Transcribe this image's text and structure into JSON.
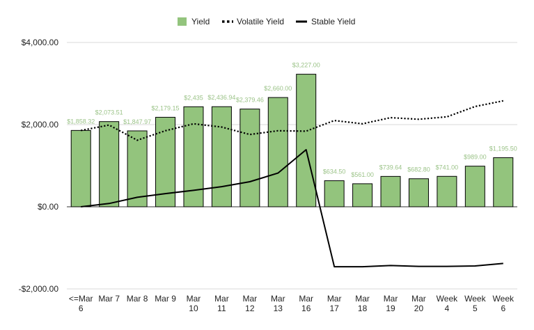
{
  "chart_data": {
    "type": "bar",
    "title": "",
    "xlabel": "",
    "ylabel": "",
    "ylim": [
      -2000,
      4000
    ],
    "yticks": [
      -2000,
      0,
      2000,
      4000
    ],
    "ytick_labels": [
      "-$2,000.00",
      "$0.00",
      "$2,000.00",
      "$4,000.00"
    ],
    "grid": true,
    "legend_position": "top",
    "categories": [
      [
        "<=Mar",
        "6"
      ],
      [
        "Mar 7"
      ],
      [
        "Mar 8"
      ],
      [
        "Mar 9"
      ],
      [
        "Mar",
        "10"
      ],
      [
        "Mar",
        "11"
      ],
      [
        "Mar",
        "12"
      ],
      [
        "Mar",
        "13"
      ],
      [
        "Mar",
        "16"
      ],
      [
        "Mar",
        "17"
      ],
      [
        "Mar",
        "18"
      ],
      [
        "Mar",
        "19"
      ],
      [
        "Mar",
        "20"
      ],
      [
        "Week",
        "4"
      ],
      [
        "Week",
        "5"
      ],
      [
        "Week",
        "6"
      ]
    ],
    "series": [
      {
        "name": "Yield",
        "kind": "bar",
        "color": "#93c47d",
        "values": [
          1858.32,
          2073.51,
          1847.97,
          2179.15,
          2435,
          2436.94,
          2379.46,
          2660,
          3227,
          634.5,
          561,
          739.64,
          682.8,
          741,
          989,
          1195.5
        ],
        "labels": [
          "$1,858.32",
          "$2,073.51",
          "$1,847.97",
          "$2,179.15",
          "$2,435",
          "$2,436.94",
          "$2,379.46",
          "$2,660.00",
          "$3,227.00",
          "$634.50",
          "$561.00",
          "$739.64",
          "$682.80",
          "$741.00",
          "$989.00",
          "$1,195.50"
        ]
      },
      {
        "name": "Volatile Yield",
        "kind": "line",
        "style": "dotted",
        "color": "#000000",
        "values": [
          1858,
          1990,
          1620,
          1850,
          2020,
          1940,
          1760,
          1850,
          1840,
          2100,
          2020,
          2170,
          2130,
          2190,
          2440,
          2580
        ]
      },
      {
        "name": "Stable Yield",
        "kind": "line",
        "style": "solid",
        "color": "#000000",
        "values": [
          0,
          80,
          230,
          320,
          400,
          490,
          610,
          820,
          1390,
          -1460,
          -1460,
          -1430,
          -1450,
          -1450,
          -1440,
          -1380
        ]
      }
    ]
  }
}
